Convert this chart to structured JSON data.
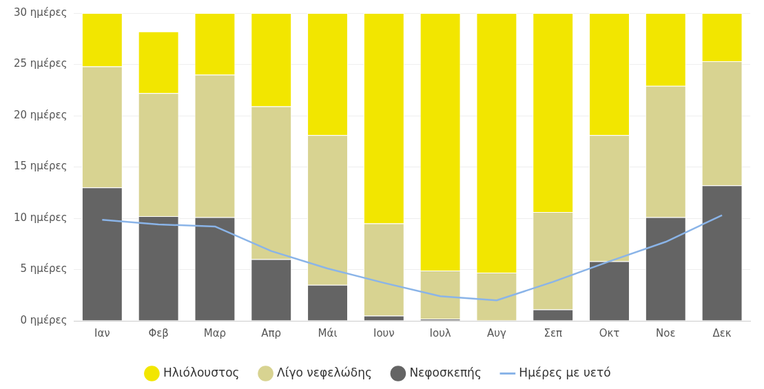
{
  "chart_data": {
    "type": "bar",
    "stacked": true,
    "categories": [
      "Ιαν",
      "Φεβ",
      "Μαρ",
      "Απρ",
      "Μάι",
      "Ιουν",
      "Ιουλ",
      "Αυγ",
      "Σεπ",
      "Οκτ",
      "Νοε",
      "Δεκ"
    ],
    "series": [
      {
        "name": "Νεφοσκεπής",
        "color": "#646464",
        "values": [
          13.0,
          10.2,
          10.1,
          6.0,
          3.5,
          0.5,
          0.2,
          null,
          1.1,
          5.8,
          10.1,
          13.2
        ]
      },
      {
        "name": "Λίγο νεφελώδης",
        "color": "#d8d391",
        "values": [
          11.8,
          12.0,
          13.9,
          14.9,
          14.6,
          9.0,
          4.7,
          4.7,
          9.5,
          12.3,
          12.8,
          12.1
        ]
      },
      {
        "name": "Ηλιόλουστος",
        "color": "#f2e600",
        "values": [
          5.2,
          6.0,
          6.0,
          9.1,
          11.9,
          20.5,
          25.1,
          25.3,
          19.4,
          11.9,
          7.1,
          4.7
        ]
      },
      {
        "name": "Ημέρες με υετό",
        "type": "line",
        "color": "#8ab4e8",
        "values": [
          9.85,
          9.4,
          9.2,
          6.8,
          5.1,
          3.7,
          2.4,
          2.0,
          3.8,
          5.8,
          7.7,
          10.3
        ]
      }
    ],
    "ylim": [
      0,
      30
    ],
    "yticks": [
      {
        "value": 0,
        "label": "0 ημέρες"
      },
      {
        "value": 5,
        "label": "5 ημέρες"
      },
      {
        "value": 10,
        "label": "10 ημέρες"
      },
      {
        "value": 15,
        "label": "15 ημέρες"
      },
      {
        "value": 20,
        "label": "20 ημέρες"
      },
      {
        "value": 25,
        "label": "25 ημέρες"
      },
      {
        "value": 30,
        "label": "30 ημέρες"
      }
    ],
    "grid": "y",
    "legend": "bottom",
    "marker": "none",
    "line_style": "solid"
  }
}
